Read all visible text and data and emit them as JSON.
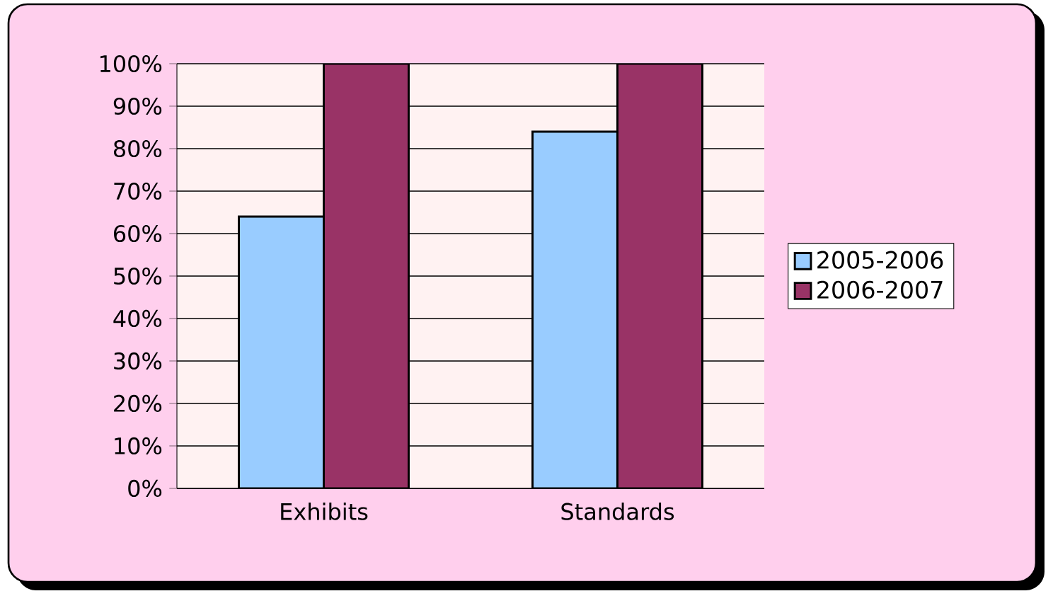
{
  "chart_data": {
    "type": "bar",
    "categories": [
      "Exhibits",
      "Standards"
    ],
    "series": [
      {
        "name": "2005-2006",
        "color": "#99ccff",
        "values": [
          64,
          84
        ]
      },
      {
        "name": "2006-2007",
        "color": "#993366",
        "values": [
          100,
          100
        ]
      }
    ],
    "ylim": [
      0,
      100
    ],
    "yticks": [
      {
        "value": 0,
        "label": "0%"
      },
      {
        "value": 10,
        "label": "10%"
      },
      {
        "value": 20,
        "label": "20%"
      },
      {
        "value": 30,
        "label": "30%"
      },
      {
        "value": 40,
        "label": "40%"
      },
      {
        "value": 50,
        "label": "50%"
      },
      {
        "value": 60,
        "label": "60%"
      },
      {
        "value": 70,
        "label": "70%"
      },
      {
        "value": 80,
        "label": "80%"
      },
      {
        "value": 90,
        "label": "90%"
      },
      {
        "value": 100,
        "label": "100%"
      }
    ],
    "grid": "y",
    "legend": "right"
  }
}
